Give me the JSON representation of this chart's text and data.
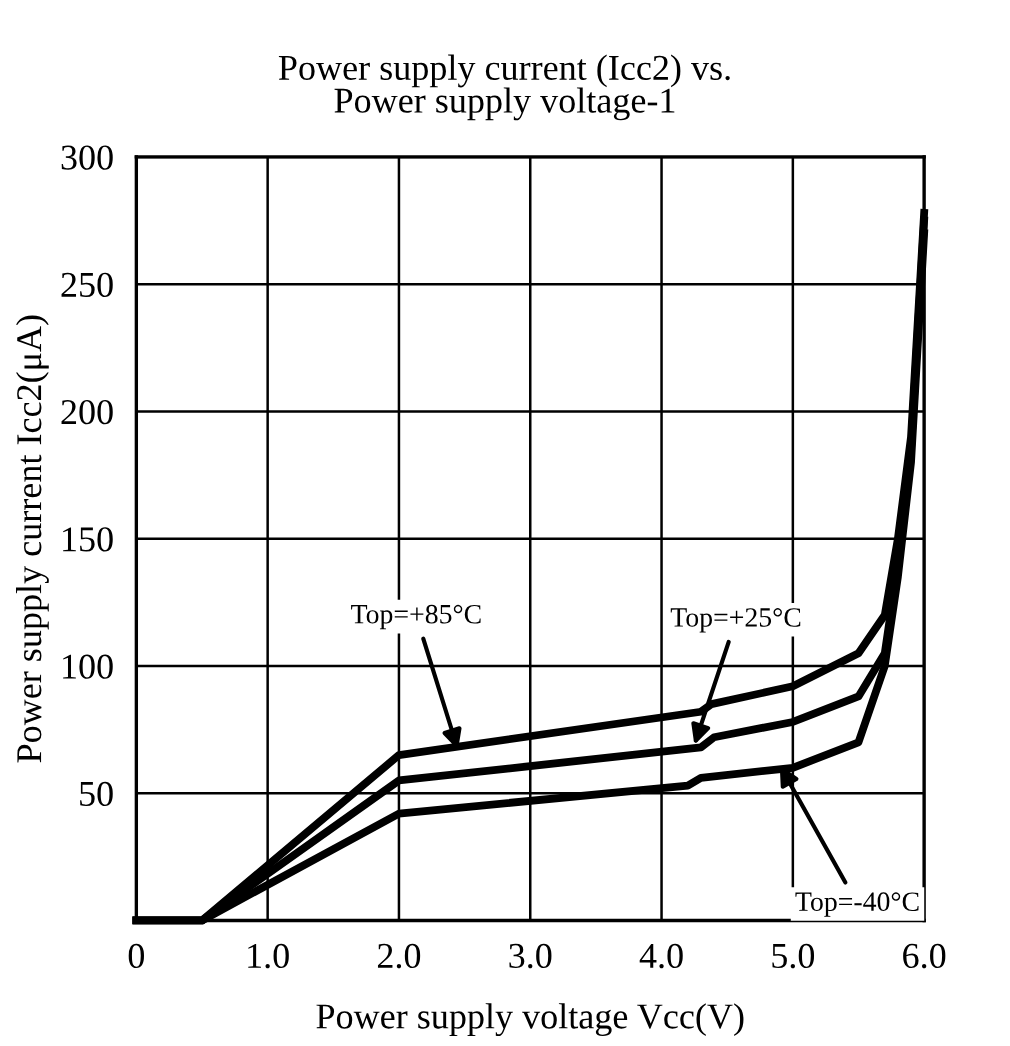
{
  "chart_data": {
    "type": "line",
    "title": "Power supply current (Icc2) vs.\nPower supply voltage-1",
    "xlabel": "Power supply voltage Vcc(V)",
    "ylabel": "Power supply current Icc2(μA)",
    "xlim": [
      0,
      6
    ],
    "xticks": [
      0,
      {
        "value": 1,
        "label": "1.0"
      },
      {
        "value": 2,
        "label": "2.0"
      },
      {
        "value": 3,
        "label": "3.0"
      },
      {
        "value": 4,
        "label": "4.0"
      },
      {
        "value": 5,
        "label": "5.0"
      },
      {
        "value": 6,
        "label": "6.0"
      }
    ],
    "ylim": [
      0,
      300
    ],
    "yticks": [
      50,
      100,
      150,
      200,
      250,
      300
    ],
    "grid": true,
    "marker": "none",
    "line_style": "solid",
    "series": [
      {
        "color": "#000000",
        "x": [
          0,
          0.5,
          2.0,
          4.3,
          4.38,
          5.0,
          5.5,
          5.7,
          5.8,
          5.9,
          6.0
        ],
        "values": [
          0,
          0,
          65,
          82,
          85,
          92,
          105,
          120,
          150,
          190,
          278
        ]
      },
      {
        "color": "#000000",
        "x": [
          0,
          0.5,
          2.0,
          4.3,
          4.4,
          5.0,
          5.5,
          5.7,
          5.8,
          5.9,
          6.0
        ],
        "values": [
          0,
          0,
          55,
          68,
          72,
          78,
          88,
          105,
          140,
          185,
          275
        ]
      },
      {
        "color": "#000000",
        "x": [
          0,
          0.5,
          2.0,
          4.2,
          4.3,
          5.0,
          5.5,
          5.7,
          5.8,
          5.9,
          6.0
        ],
        "values": [
          0,
          0,
          42,
          53,
          56,
          60,
          70,
          100,
          135,
          180,
          270
        ]
      }
    ],
    "annotations": [
      {
        "text": "Top=+85°C",
        "x": 2.45,
        "y": 67
      },
      {
        "text": "Top=+25°C",
        "x": 4.25,
        "y": 69
      },
      {
        "text": "Top=-40°C",
        "x": 4.9,
        "y": 61
      }
    ]
  }
}
